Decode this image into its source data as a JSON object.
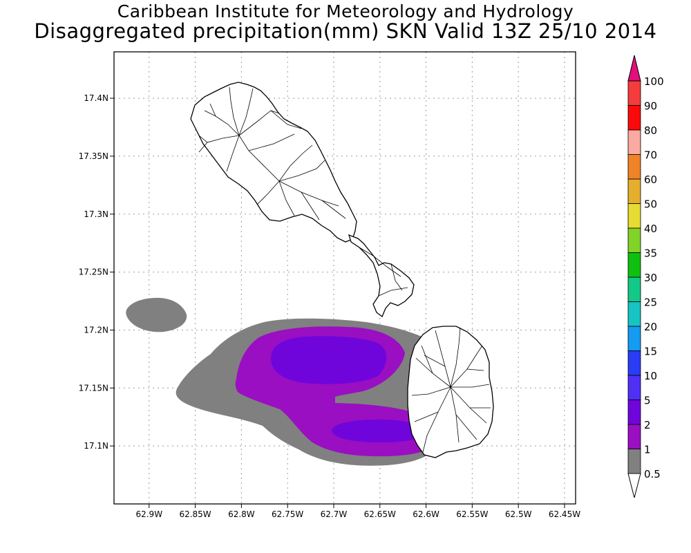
{
  "header": {
    "title": "Caribbean Institute for Meteorology and Hydrology",
    "subtitle": "Disaggregated precipitation(mm) SKN Valid 13Z 25/10 2014"
  },
  "axes": {
    "x_ticks": [
      "62.9W",
      "62.85W",
      "62.8W",
      "62.75W",
      "62.7W",
      "62.65W",
      "62.6W",
      "62.55W",
      "62.5W",
      "62.45W"
    ],
    "x_values": [
      -62.9,
      -62.85,
      -62.8,
      -62.75,
      -62.7,
      -62.65,
      -62.6,
      -62.55,
      -62.5,
      -62.45
    ],
    "y_ticks": [
      "17.1N",
      "17.15N",
      "17.2N",
      "17.25N",
      "17.3N",
      "17.35N",
      "17.4N"
    ],
    "y_values": [
      17.1,
      17.15,
      17.2,
      17.25,
      17.3,
      17.35,
      17.4
    ],
    "xlim": [
      -62.938,
      -62.438
    ],
    "ylim": [
      17.05,
      17.44
    ],
    "grid": true
  },
  "colorbar": {
    "levels": [
      "0.5",
      "1",
      "2",
      "5",
      "10",
      "15",
      "20",
      "25",
      "30",
      "35",
      "40",
      "50",
      "60",
      "70",
      "80",
      "90",
      "100"
    ],
    "colors": [
      "#808080",
      "#9a0fc2",
      "#7005db",
      "#5030f5",
      "#2a3cf5",
      "#149bf2",
      "#16c4c4",
      "#14c888",
      "#10c010",
      "#82d328",
      "#e6dc32",
      "#e5af2d",
      "#f08228",
      "#faaaa0",
      "#fa0a0a",
      "#f53c3c",
      "#e0107a"
    ]
  },
  "map": {
    "region": "St. Kitts and Nevis",
    "rain_colors": {
      "light": "#808080",
      "moderate": "#9a0fc2",
      "heavy": "#7005db"
    }
  }
}
